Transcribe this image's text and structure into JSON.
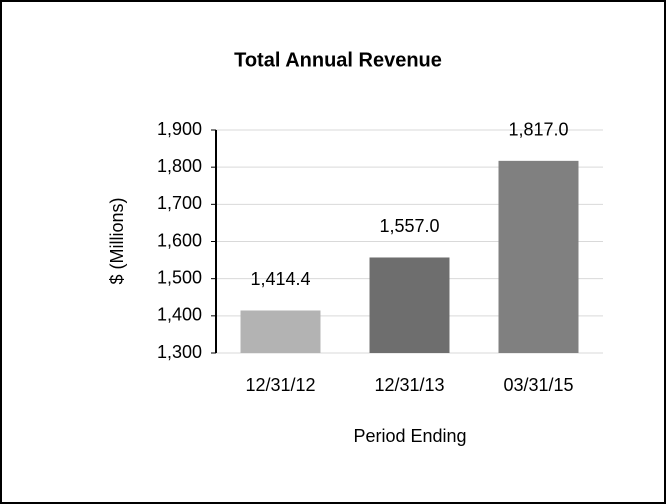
{
  "chart_data": {
    "type": "bar",
    "title": "Total Annual Revenue",
    "x_label": "Period Ending",
    "y_label": "$ (Millions)",
    "categories": [
      "12/31/12",
      "12/31/13",
      "03/31/15"
    ],
    "values": [
      1414.4,
      1557.0,
      1817.0
    ],
    "value_labels": [
      "1,414.4",
      "1,557.0",
      "1,817.0"
    ],
    "colors": [
      "#b3b3b3",
      "#6e6e6e",
      "#808080"
    ],
    "ylim": [
      1300,
      1900
    ],
    "yticks": [
      {
        "value": 1300,
        "label": "1,300"
      },
      {
        "value": 1400,
        "label": "1,400"
      },
      {
        "value": 1500,
        "label": "1,500"
      },
      {
        "value": 1600,
        "label": "1,600"
      },
      {
        "value": 1700,
        "label": "1,700"
      },
      {
        "value": 1800,
        "label": "1,800"
      },
      {
        "value": 1900,
        "label": "1,900"
      }
    ],
    "grid": true
  }
}
